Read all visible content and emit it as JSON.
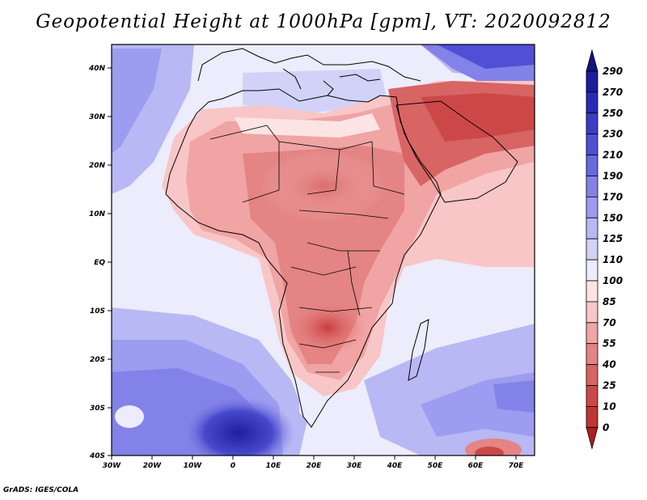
{
  "title": "Geopotential Height at 1000hPa [gpm], VT: 2020092812",
  "credit": "GrADS: IGES/COLA",
  "map": {
    "variable": "Geopotential Height",
    "level": "1000hPa",
    "units": "gpm",
    "valid_time": "2020092812",
    "lon_range": [
      -30,
      75
    ],
    "lat_range": [
      -40,
      45
    ],
    "lon_ticks": [
      {
        "value": -30,
        "label": "30W"
      },
      {
        "value": -20,
        "label": "20W"
      },
      {
        "value": -10,
        "label": "10W"
      },
      {
        "value": 0,
        "label": "0"
      },
      {
        "value": 10,
        "label": "10E"
      },
      {
        "value": 20,
        "label": "20E"
      },
      {
        "value": 30,
        "label": "30E"
      },
      {
        "value": 40,
        "label": "40E"
      },
      {
        "value": 50,
        "label": "50E"
      },
      {
        "value": 60,
        "label": "60E"
      },
      {
        "value": 70,
        "label": "70E"
      }
    ],
    "lat_ticks": [
      {
        "value": 40,
        "label": "40N"
      },
      {
        "value": 30,
        "label": "30N"
      },
      {
        "value": 20,
        "label": "20N"
      },
      {
        "value": 10,
        "label": "10N"
      },
      {
        "value": 0,
        "label": "EQ"
      },
      {
        "value": -10,
        "label": "10S"
      },
      {
        "value": -20,
        "label": "20S"
      },
      {
        "value": -30,
        "label": "30S"
      },
      {
        "value": -40,
        "label": "40S"
      }
    ]
  },
  "colorbar": {
    "levels": [
      "290",
      "270",
      "250",
      "230",
      "210",
      "190",
      "170",
      "150",
      "125",
      "110",
      "100",
      "85",
      "70",
      "55",
      "40",
      "25",
      "10",
      "0"
    ],
    "colors": [
      "#1c1c9c",
      "#2a2ab8",
      "#3c3cc8",
      "#5050d6",
      "#6868e0",
      "#8282e8",
      "#9c9cf0",
      "#b8b8f4",
      "#d2d2f8",
      "#ececfc",
      "#fce4e4",
      "#f8c6c6",
      "#f0a4a4",
      "#e48484",
      "#d86464",
      "#cc4848",
      "#c03434",
      "#a81e1e"
    ],
    "top_arrow_color": "#141480",
    "bottom_arrow_color": "#b01e1e"
  }
}
